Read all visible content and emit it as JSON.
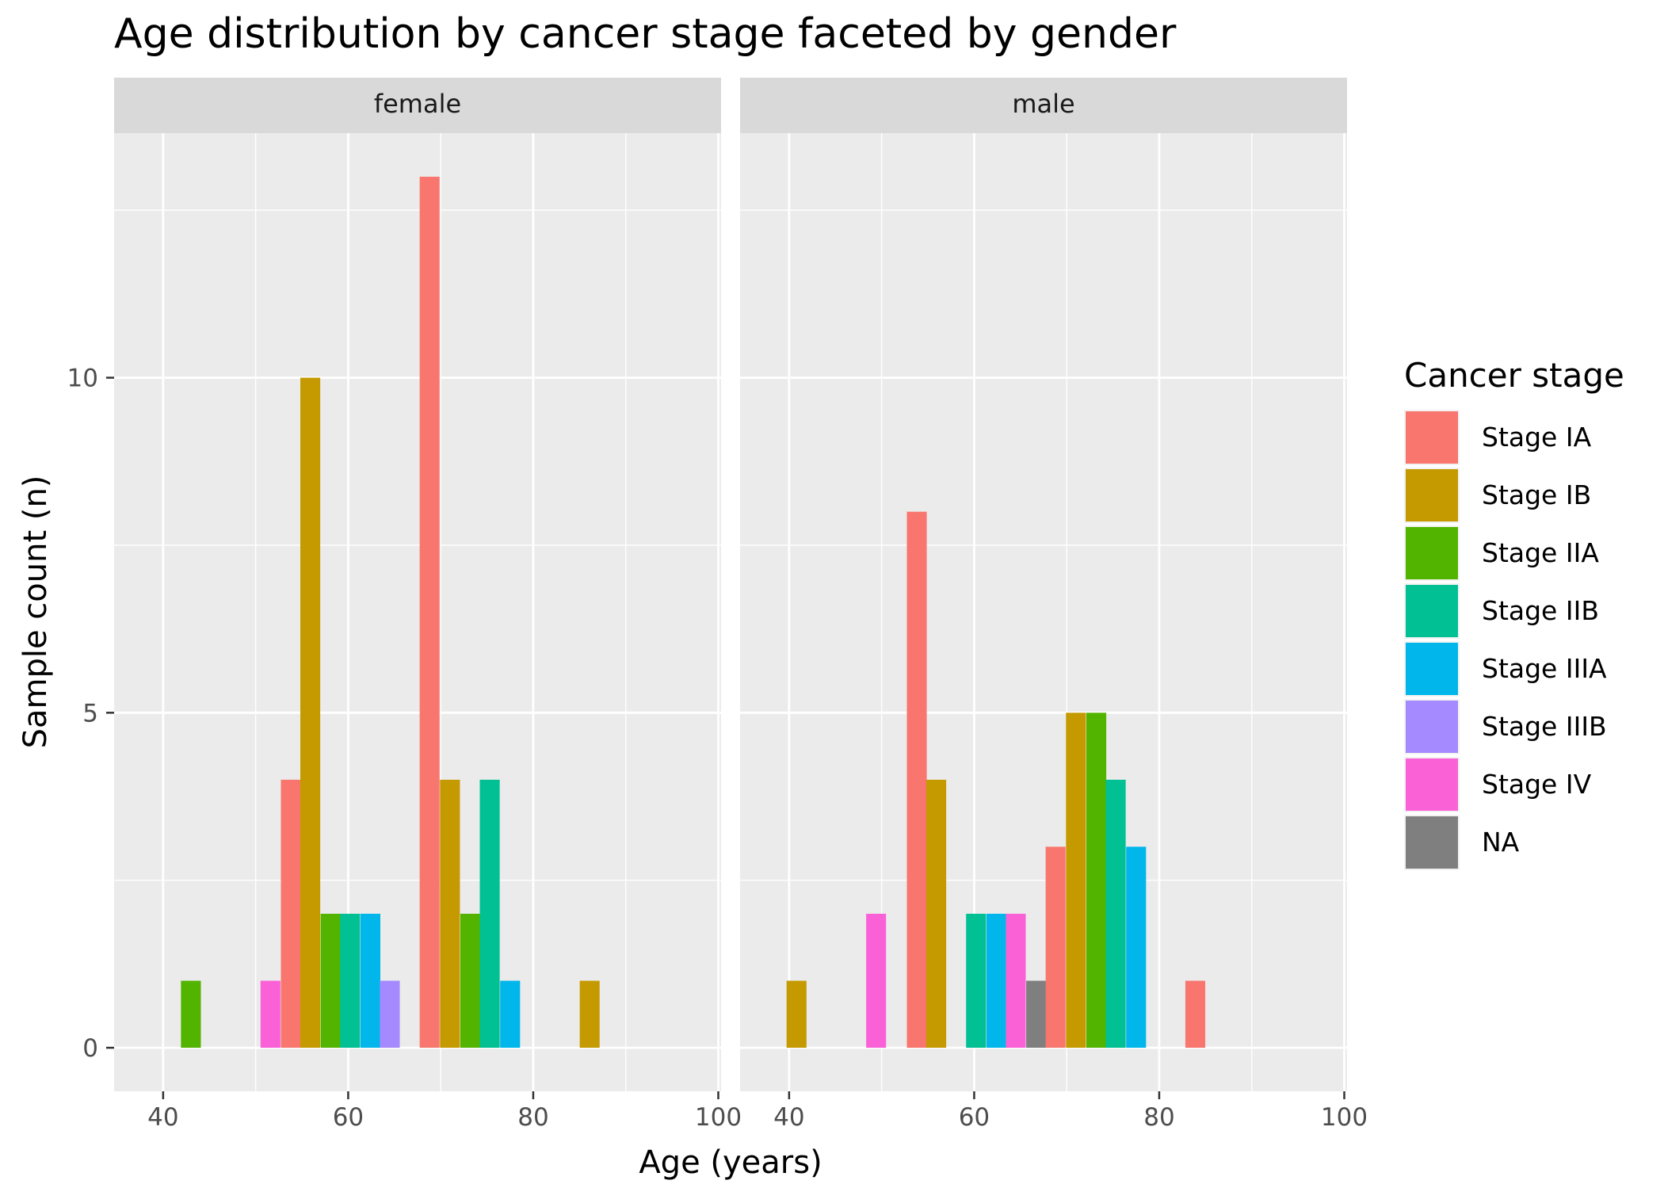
{
  "chart_data": {
    "type": "bar",
    "title": "Age distribution by cancer stage faceted by gender",
    "xlabel": "Age (years)",
    "ylabel": "Sample count (n)",
    "xlim": [
      34.7,
      100.3
    ],
    "ylim": [
      -0.65,
      13.65
    ],
    "x_ticks": [
      40,
      60,
      80,
      100
    ],
    "x_tick_labels": [
      "40",
      "60",
      "80",
      "100"
    ],
    "y_ticks": [
      0,
      5,
      10
    ],
    "y_tick_labels": [
      "0",
      "5",
      "10"
    ],
    "x_minor_grid": [
      50,
      70,
      90
    ],
    "y_minor_grid": [
      2.5,
      7.5,
      12.5
    ],
    "grid": true,
    "bar_width": 2.15,
    "legend": {
      "title": "Cancer stage",
      "position": "right",
      "entries": [
        {
          "label": "Stage IA",
          "color": "#F8766D"
        },
        {
          "label": "Stage IB",
          "color": "#C49A00"
        },
        {
          "label": "Stage IIA",
          "color": "#53B400"
        },
        {
          "label": "Stage IIB",
          "color": "#00C094"
        },
        {
          "label": "Stage IIIA",
          "color": "#00B6EB"
        },
        {
          "label": "Stage IIIB",
          "color": "#A58AFF"
        },
        {
          "label": "Stage IV",
          "color": "#FB61D7"
        },
        {
          "label": "NA",
          "color": "#7F7F7F"
        }
      ]
    },
    "facets": [
      {
        "name": "female",
        "bars": [
          {
            "stage": "Stage IIA",
            "x": 43.0,
            "y": 1
          },
          {
            "stage": "Stage IV",
            "x": 51.6,
            "y": 1
          },
          {
            "stage": "Stage IA",
            "x": 53.8,
            "y": 4
          },
          {
            "stage": "Stage IB",
            "x": 55.9,
            "y": 10
          },
          {
            "stage": "Stage IIA",
            "x": 58.1,
            "y": 2
          },
          {
            "stage": "Stage IIB",
            "x": 60.2,
            "y": 2
          },
          {
            "stage": "Stage IIIA",
            "x": 62.4,
            "y": 2
          },
          {
            "stage": "Stage IIIB",
            "x": 64.5,
            "y": 1
          },
          {
            "stage": "Stage IA",
            "x": 68.8,
            "y": 13
          },
          {
            "stage": "Stage IB",
            "x": 71.0,
            "y": 4
          },
          {
            "stage": "Stage IIA",
            "x": 73.2,
            "y": 2
          },
          {
            "stage": "Stage IIB",
            "x": 75.3,
            "y": 4
          },
          {
            "stage": "Stage IIIA",
            "x": 77.5,
            "y": 1
          },
          {
            "stage": "Stage IB",
            "x": 86.1,
            "y": 1
          }
        ]
      },
      {
        "name": "male",
        "bars": [
          {
            "stage": "Stage IB",
            "x": 40.8,
            "y": 1
          },
          {
            "stage": "Stage IV",
            "x": 49.4,
            "y": 2
          },
          {
            "stage": "Stage IA",
            "x": 53.8,
            "y": 8
          },
          {
            "stage": "Stage IB",
            "x": 55.9,
            "y": 4
          },
          {
            "stage": "Stage IIB",
            "x": 60.2,
            "y": 2
          },
          {
            "stage": "Stage IIIA",
            "x": 62.4,
            "y": 2
          },
          {
            "stage": "Stage IV",
            "x": 64.5,
            "y": 2
          },
          {
            "stage": "NA",
            "x": 66.7,
            "y": 1
          },
          {
            "stage": "Stage IA",
            "x": 68.8,
            "y": 3
          },
          {
            "stage": "Stage IB",
            "x": 71.0,
            "y": 5
          },
          {
            "stage": "Stage IIA",
            "x": 73.2,
            "y": 5
          },
          {
            "stage": "Stage IIB",
            "x": 75.3,
            "y": 4
          },
          {
            "stage": "Stage IIIA",
            "x": 77.5,
            "y": 3
          },
          {
            "stage": "Stage IA",
            "x": 83.9,
            "y": 1
          }
        ]
      }
    ]
  }
}
